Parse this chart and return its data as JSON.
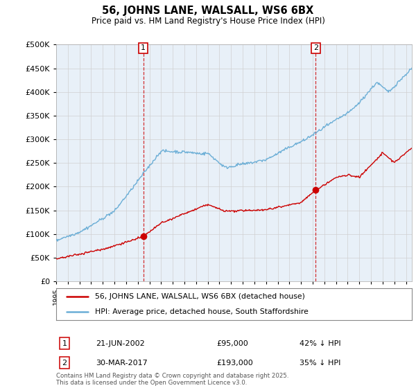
{
  "title": "56, JOHNS LANE, WALSALL, WS6 6BX",
  "subtitle": "Price paid vs. HM Land Registry's House Price Index (HPI)",
  "ytick_values": [
    0,
    50000,
    100000,
    150000,
    200000,
    250000,
    300000,
    350000,
    400000,
    450000,
    500000
  ],
  "ylim": [
    0,
    500000
  ],
  "xlim_start": 1995,
  "xlim_end": 2025.5,
  "hpi_color": "#6baed6",
  "price_color": "#cc0000",
  "marker1_x": 2002.47,
  "marker1_y": 95000,
  "marker2_x": 2017.25,
  "marker2_y": 193000,
  "vline1_x": 2002.47,
  "vline2_x": 2017.25,
  "legend_line1": "56, JOHNS LANE, WALSALL, WS6 6BX (detached house)",
  "legend_line2": "HPI: Average price, detached house, South Staffordshire",
  "ann1_label": "1",
  "ann1_date": "21-JUN-2002",
  "ann1_price": "£95,000",
  "ann1_hpi": "42% ↓ HPI",
  "ann2_label": "2",
  "ann2_date": "30-MAR-2017",
  "ann2_price": "£193,000",
  "ann2_hpi": "35% ↓ HPI",
  "footer": "Contains HM Land Registry data © Crown copyright and database right 2025.\nThis data is licensed under the Open Government Licence v3.0.",
  "background_color": "#ffffff",
  "grid_color": "#d0d0d0",
  "chart_bg": "#e8f0f8"
}
